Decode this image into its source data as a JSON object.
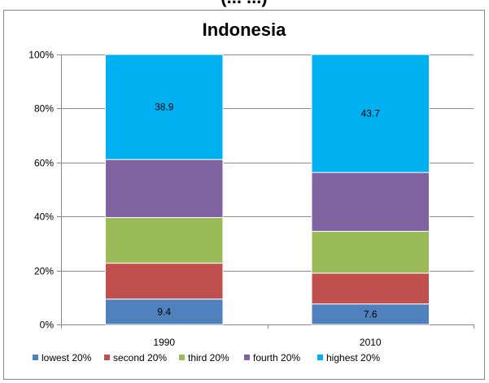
{
  "chart_data": {
    "type": "bar",
    "stacked": true,
    "percent_stacked": true,
    "title": "Indonesia",
    "header_fragment": "(... ...)",
    "categories": [
      "1990",
      "2010"
    ],
    "series": [
      {
        "name": "lowest 20%",
        "color": "#4f81bd",
        "values": [
          9.4,
          7.6
        ]
      },
      {
        "name": "second 20%",
        "color": "#c0504d",
        "values": [
          13.3,
          11.4
        ]
      },
      {
        "name": "third 20%",
        "color": "#9bbb59",
        "values": [
          16.9,
          15.5
        ]
      },
      {
        "name": "fourth 20%",
        "color": "#8064a2",
        "values": [
          21.5,
          21.8
        ]
      },
      {
        "name": "highest 20%",
        "color": "#00b0f0",
        "values": [
          38.9,
          43.7
        ]
      }
    ],
    "data_labels": [
      {
        "series": 0,
        "category": 0,
        "text": "9.4"
      },
      {
        "series": 0,
        "category": 1,
        "text": "7.6"
      },
      {
        "series": 4,
        "category": 0,
        "text": "38.9"
      },
      {
        "series": 4,
        "category": 1,
        "text": "43.7"
      }
    ],
    "y_ticks": [
      "0%",
      "20%",
      "40%",
      "60%",
      "80%",
      "100%"
    ],
    "ylim": [
      0,
      100
    ],
    "grid": true,
    "legend_position": "bottom"
  }
}
